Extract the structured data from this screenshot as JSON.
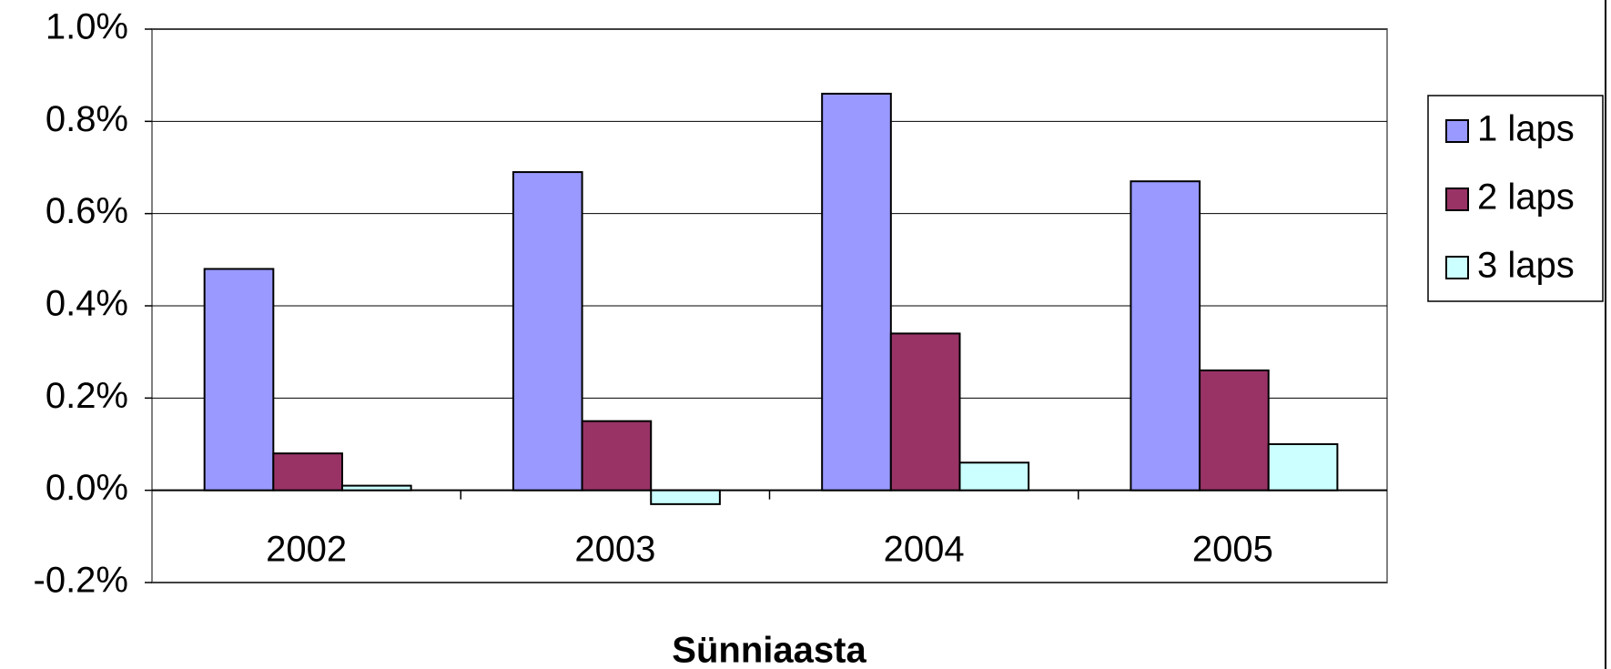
{
  "chart_data": {
    "type": "bar",
    "x_label": "Sünniaasta",
    "categories": [
      "2002",
      "2003",
      "2004",
      "2005"
    ],
    "series": [
      {
        "name": "1 laps",
        "color": "#9999ff",
        "values": [
          0.48,
          0.69,
          0.86,
          0.67
        ]
      },
      {
        "name": "2 laps",
        "color": "#993366",
        "values": [
          0.08,
          0.15,
          0.34,
          0.26
        ]
      },
      {
        "name": "3 laps",
        "color": "#ccffff",
        "values": [
          0.01,
          -0.03,
          0.06,
          0.1
        ]
      }
    ],
    "ylim": [
      -0.2,
      1.0
    ],
    "yticks": [
      {
        "value": -0.2,
        "label": "-0.2%"
      },
      {
        "value": 0.0,
        "label": "0.0%"
      },
      {
        "value": 0.2,
        "label": "0.2%"
      },
      {
        "value": 0.4,
        "label": "0.4%"
      },
      {
        "value": 0.6,
        "label": "0.6%"
      },
      {
        "value": 0.8,
        "label": "0.8%"
      },
      {
        "value": 1.0,
        "label": "1.0%"
      }
    ],
    "grid": true,
    "legend": "right"
  }
}
